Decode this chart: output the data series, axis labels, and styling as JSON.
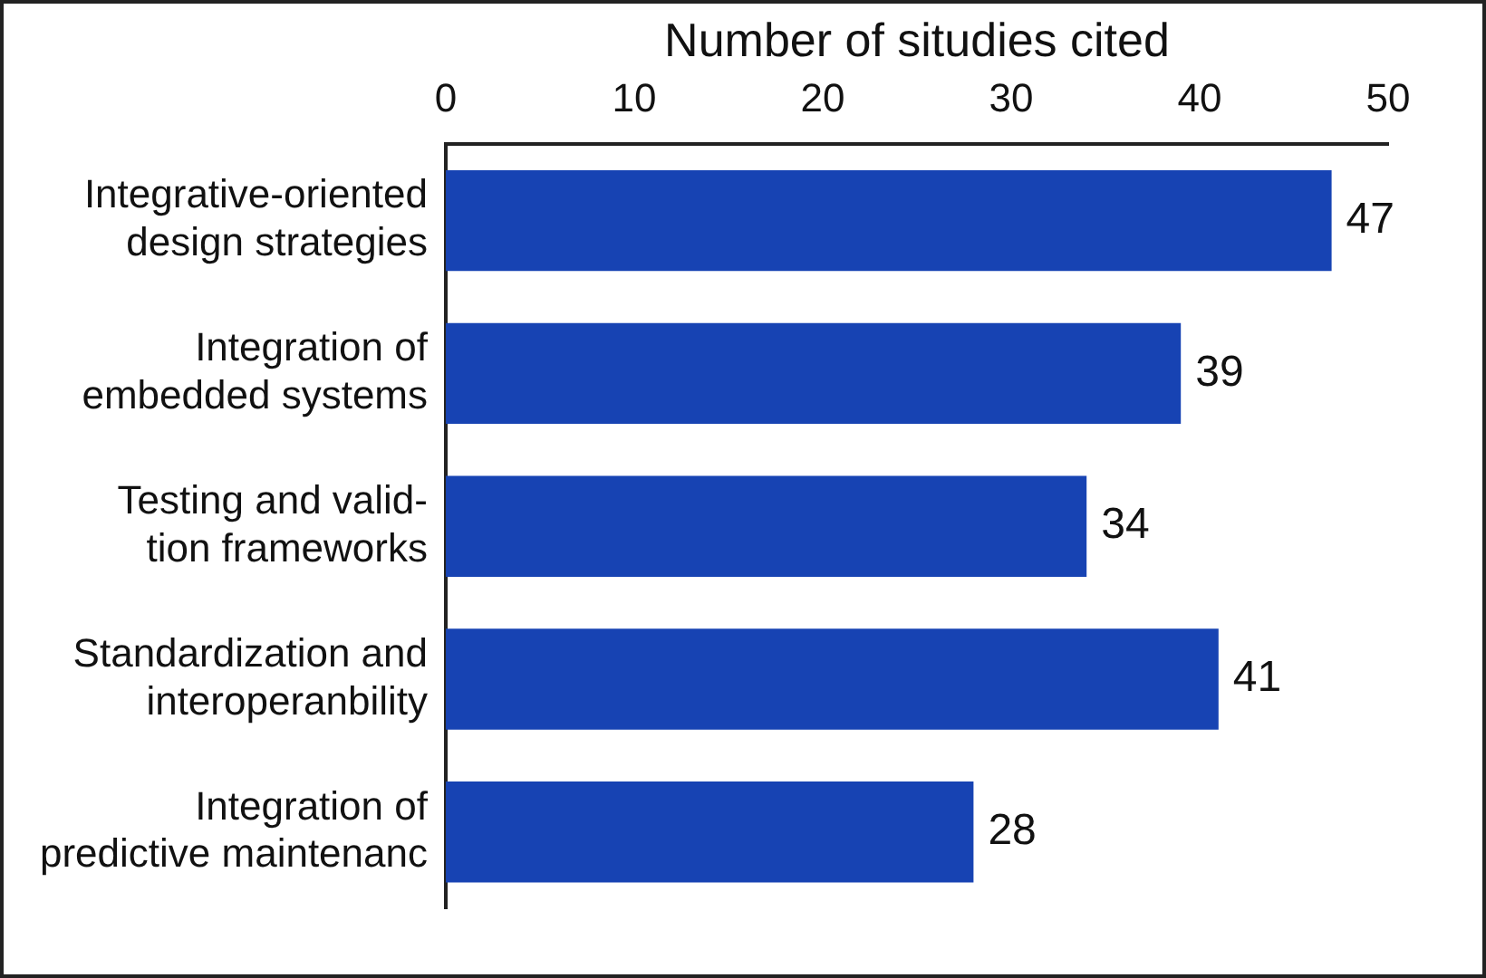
{
  "chart_data": {
    "type": "bar",
    "orientation": "horizontal",
    "xlabel": "Number of situdies cited",
    "categories": [
      "Integrative-oriented\ndesign strategies",
      "Integration of\nembedded systems",
      "Testing and valid-\ntion frameworks",
      "Standardization and\ninteroperanbility",
      "Integration of\npredictive maintenanc"
    ],
    "values": [
      47,
      39,
      34,
      41,
      28
    ],
    "color": "#1743b3",
    "xlim": [
      0,
      50
    ],
    "xticks": [
      0,
      10,
      20,
      30,
      40,
      50
    ],
    "grid": false,
    "legend": false,
    "data_labels": true
  }
}
